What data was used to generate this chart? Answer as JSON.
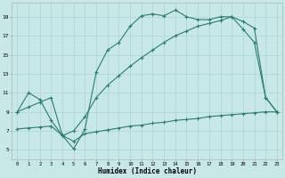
{
  "xlabel": "Humidex (Indice chaleur)",
  "bg_color": "#c8e8e8",
  "grid_color": "#b0d8d8",
  "line_color": "#2e7d6e",
  "xlim": [
    -0.5,
    23.5
  ],
  "ylim": [
    4.0,
    20.5
  ],
  "xticks": [
    0,
    1,
    2,
    3,
    4,
    5,
    6,
    7,
    8,
    9,
    10,
    11,
    12,
    13,
    14,
    15,
    16,
    17,
    18,
    19,
    20,
    21,
    22,
    23
  ],
  "yticks": [
    5,
    7,
    9,
    11,
    13,
    15,
    17,
    19
  ],
  "line1_x": [
    0,
    1,
    2,
    3,
    4,
    5,
    6,
    7,
    8,
    9,
    10,
    11,
    12,
    13,
    14,
    15,
    16,
    17,
    18,
    19,
    20,
    21,
    22,
    23
  ],
  "line1_y": [
    9.0,
    11.0,
    10.3,
    8.1,
    6.5,
    5.1,
    7.2,
    13.2,
    15.5,
    16.3,
    18.0,
    19.1,
    19.3,
    19.1,
    19.7,
    19.0,
    18.7,
    18.7,
    19.0,
    19.0,
    17.7,
    16.3,
    10.5,
    9.0
  ],
  "line2_x": [
    0,
    1,
    2,
    3,
    4,
    5,
    6,
    7,
    8,
    9,
    10,
    11,
    12,
    13,
    14,
    15,
    16,
    17,
    18,
    19,
    20,
    21,
    22,
    23
  ],
  "line2_y": [
    7.2,
    7.3,
    7.4,
    7.5,
    6.5,
    5.9,
    6.7,
    6.9,
    7.1,
    7.3,
    7.5,
    7.6,
    7.8,
    7.9,
    8.1,
    8.2,
    8.3,
    8.5,
    8.6,
    8.7,
    8.8,
    8.9,
    9.0,
    9.0
  ],
  "line3_x": [
    0,
    1,
    2,
    3,
    4,
    5,
    6,
    7,
    8,
    9,
    10,
    11,
    12,
    13,
    14,
    15,
    16,
    17,
    18,
    19,
    20,
    21,
    22,
    23
  ],
  "line3_y": [
    9.0,
    9.5,
    10.0,
    10.5,
    6.5,
    7.0,
    8.5,
    10.5,
    11.8,
    12.8,
    13.8,
    14.7,
    15.5,
    16.3,
    17.0,
    17.5,
    18.0,
    18.3,
    18.6,
    19.0,
    18.5,
    17.8,
    10.5,
    9.0
  ]
}
